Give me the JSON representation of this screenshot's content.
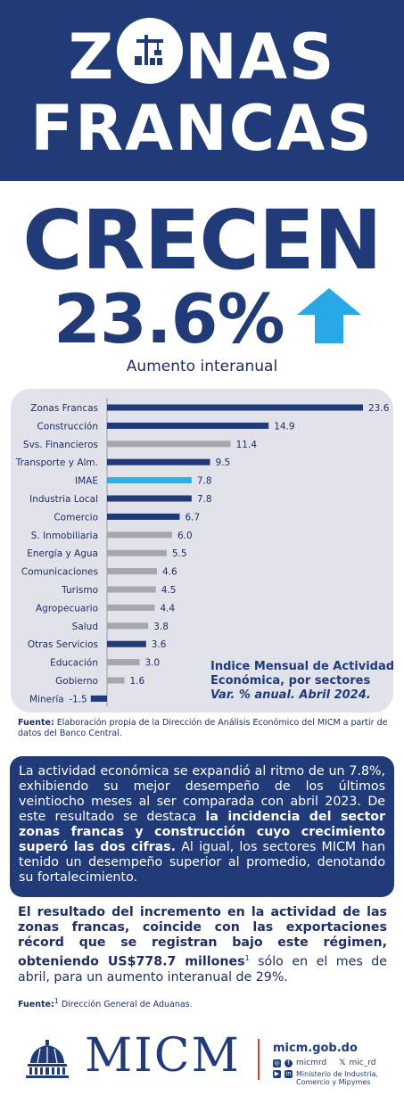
{
  "header": {
    "line1_left": "Z",
    "line1_right": "NAS",
    "line2": "FRANCAS"
  },
  "headline": {
    "crecen": "CRECEN",
    "percent": "23.6%",
    "subtitle": "Aumento interanual"
  },
  "colors": {
    "navy": "#213b78",
    "gray": "#a7a7ab",
    "highlight": "#28b2e6",
    "panel": "#e2e2ea",
    "arrow": "#28a9e6",
    "red": "#e63b2e"
  },
  "chart_data": {
    "type": "bar",
    "orientation": "horizontal",
    "title": "Indice Mensual de Actividad Económica, por sectores",
    "subtitle": "Var. % anual. Abril 2024.",
    "categories": [
      "Zonas Francas",
      "Construcción",
      "Svs. Financieros",
      "Transporte y Alm.",
      "IMAE",
      "Industria Local",
      "Comercio",
      "S. Inmobiliaria",
      "Energía y Agua",
      "Comunicaciones",
      "Turismo",
      "Agropecuario",
      "Salud",
      "Otras Servicios",
      "Educación",
      "Gobierno",
      "Minería"
    ],
    "values": [
      23.6,
      14.9,
      11.4,
      9.5,
      7.8,
      7.8,
      6.7,
      6.0,
      5.5,
      4.6,
      4.5,
      4.4,
      3.8,
      3.6,
      3.0,
      1.6,
      -1.5
    ],
    "value_labels": [
      "23.6",
      "14.9",
      "11.4",
      "9.5",
      "7.8",
      "7.8",
      "6.7",
      "6.0",
      "5.5",
      "4.6",
      "4.5",
      "4.4",
      "3.8",
      "3.6",
      "3.0",
      "1.6",
      "-1.5"
    ],
    "bar_colors": [
      "navy",
      "navy",
      "gray",
      "navy",
      "highlight",
      "navy",
      "navy",
      "gray",
      "gray",
      "gray",
      "gray",
      "gray",
      "gray",
      "navy",
      "gray",
      "gray",
      "navy"
    ],
    "xlim": [
      -1.5,
      23.6
    ],
    "grid": false
  },
  "legend": {
    "line1": "Indice Mensual de Actividad",
    "line2": "Económica, por sectores",
    "line3": "Var. % anual. Abril 2024."
  },
  "source1": {
    "label": "Fuente:",
    "text": " Elaboración propia de la Dirección de Análisis Económico del MICM a partir de datos del Banco Central."
  },
  "bluebox": {
    "p1": "La actividad económica se expandió al ritmo de un 7.8%, exhibiendo su mejor desempeño de los últimos veintiocho meses al ser comparada con abril 2023. De este resultado se destaca ",
    "bold": "la incidencia del sector zonas francas y construcción cuyo crecimiento superó las dos cifras.",
    "p2": " Al igual, los sectores MICM han tenido un desempeño superior al promedio, denotando su fortalecimiento."
  },
  "bottom": {
    "bold": "El resultado del incremento en la actividad de las zonas francas, coincide con las exportaciones récord que se registran bajo este régimen, obteniendo US$778.7 millones",
    "sup": "1",
    "rest": " sólo en el mes de abril, para un aumento interanual de 29%."
  },
  "source2": {
    "label": "Fuente:",
    "sup": "1",
    "text": " Dirección General de Aduanas."
  },
  "footer": {
    "logo": "MICM",
    "web": "micm.gob.do",
    "handle1": "micmrd",
    "handle2": "mic_rd",
    "ministerio_l1": "Ministerio de Industria,",
    "ministerio_l2": "Comercio y Mipymes",
    "icons": [
      "instagram-icon",
      "facebook-icon",
      "x-icon",
      "youtube-icon",
      "linkedin-icon"
    ]
  }
}
